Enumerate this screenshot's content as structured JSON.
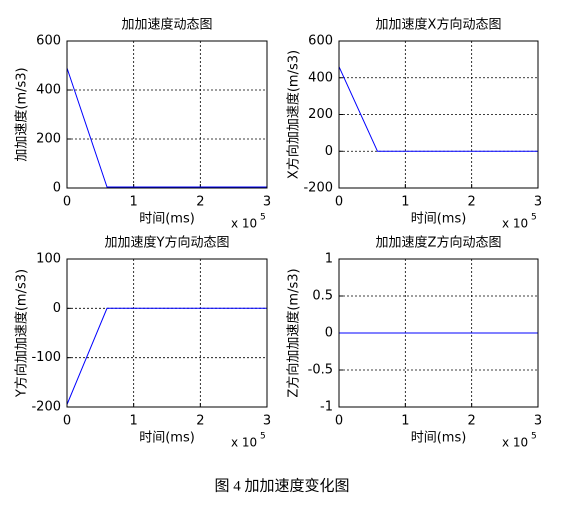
{
  "caption": "图 4  加加速度变化图",
  "chart_data": [
    {
      "type": "line",
      "title": "加加速度动态图",
      "xlabel": "时间(ms)",
      "ylabel": "加加速度(m/s3)",
      "x_scale_base": "x 10",
      "x_scale_power": "5",
      "x": [
        0,
        0.6,
        3
      ],
      "values": [
        490,
        4,
        4
      ],
      "color": "#0000ff",
      "xlim": [
        0,
        3
      ],
      "xticks": [
        0,
        1,
        2,
        3
      ],
      "ylim": [
        0,
        600
      ],
      "yticks": [
        0,
        200,
        400,
        600
      ],
      "grid": true
    },
    {
      "type": "line",
      "title": "加加速度X方向动态图",
      "xlabel": "时间(ms)",
      "ylabel": "X方向加加速度(m/s3)",
      "x_scale_base": "x 10",
      "x_scale_power": "5",
      "x": [
        0,
        0.58,
        3
      ],
      "values": [
        460,
        0,
        0
      ],
      "color": "#0000ff",
      "xlim": [
        0,
        3
      ],
      "xticks": [
        0,
        1,
        2,
        3
      ],
      "ylim": [
        -200,
        600
      ],
      "yticks": [
        -200,
        0,
        200,
        400,
        600
      ],
      "grid": true
    },
    {
      "type": "line",
      "title": "加加速度Y方向动态图",
      "xlabel": "时间(ms)",
      "ylabel": "Y方向加加速度(m/s3)",
      "x_scale_base": "x 10",
      "x_scale_power": "5",
      "x": [
        0,
        0.6,
        3
      ],
      "values": [
        -195,
        0,
        0
      ],
      "color": "#0000ff",
      "xlim": [
        0,
        3
      ],
      "xticks": [
        0,
        1,
        2,
        3
      ],
      "ylim": [
        -200,
        100
      ],
      "yticks": [
        -200,
        -100,
        0,
        100
      ],
      "grid": true
    },
    {
      "type": "line",
      "title": "加加速度Z方向动态图",
      "xlabel": "时间(ms)",
      "ylabel": "Z方向加加速度(m/s3)",
      "x_scale_base": "x 10",
      "x_scale_power": "5",
      "x": [
        0,
        3
      ],
      "values": [
        0,
        0
      ],
      "color": "#0000ff",
      "xlim": [
        0,
        3
      ],
      "xticks": [
        0,
        1,
        2,
        3
      ],
      "ylim": [
        -1,
        1
      ],
      "yticks": [
        -1,
        -0.5,
        0,
        0.5,
        1
      ],
      "grid": true
    }
  ]
}
